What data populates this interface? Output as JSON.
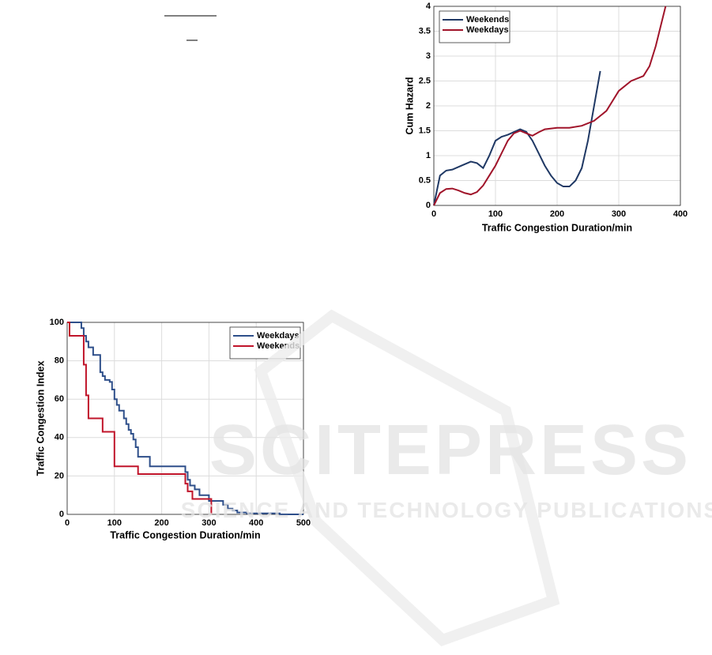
{
  "watermark": {
    "title": "SCITEPRESS",
    "subtitle": "SCIENCE AND TECHNOLOGY PUBLICATIONS"
  },
  "chart_data": [
    {
      "type": "line",
      "xlabel": "Traffic Congestion Duration/min",
      "ylabel": "Cum Hazard",
      "xlim": [
        0,
        400
      ],
      "xticks": [
        0,
        100,
        200,
        300,
        400
      ],
      "ylim": [
        0,
        4
      ],
      "yticks": [
        0,
        0.5,
        1,
        1.5,
        2,
        2.5,
        3,
        3.5,
        4
      ],
      "grid": true,
      "legend": "upper left",
      "series": [
        {
          "name": "Weekends",
          "color": "#1f3864",
          "x": [
            0,
            10,
            20,
            30,
            45,
            60,
            70,
            80,
            90,
            100,
            110,
            120,
            140,
            150,
            160,
            170,
            180,
            190,
            200,
            210,
            220,
            230,
            240,
            250,
            260,
            270
          ],
          "values": [
            0,
            0.6,
            0.7,
            0.72,
            0.8,
            0.88,
            0.85,
            0.75,
            1.0,
            1.3,
            1.38,
            1.42,
            1.53,
            1.48,
            1.3,
            1.05,
            0.8,
            0.6,
            0.45,
            0.38,
            0.38,
            0.5,
            0.75,
            1.3,
            2.0,
            2.7
          ]
        },
        {
          "name": "Weekdays",
          "color": "#a0142a",
          "x": [
            0,
            10,
            20,
            30,
            40,
            50,
            60,
            70,
            80,
            90,
            100,
            110,
            120,
            130,
            140,
            150,
            160,
            170,
            180,
            200,
            220,
            240,
            260,
            280,
            300,
            320,
            340,
            350,
            360,
            370,
            376
          ],
          "values": [
            0,
            0.25,
            0.33,
            0.34,
            0.3,
            0.25,
            0.22,
            0.27,
            0.4,
            0.6,
            0.8,
            1.05,
            1.3,
            1.45,
            1.5,
            1.45,
            1.4,
            1.47,
            1.53,
            1.56,
            1.56,
            1.6,
            1.7,
            1.9,
            2.3,
            2.5,
            2.6,
            2.8,
            3.2,
            3.7,
            4.0
          ]
        }
      ]
    },
    {
      "type": "step",
      "xlabel": "Traffic Congestion Duration/min",
      "ylabel": "Traffic Congestion Index",
      "xlim": [
        0,
        500
      ],
      "xticks": [
        0,
        100,
        200,
        300,
        400,
        500
      ],
      "ylim": [
        0,
        100
      ],
      "yticks": [
        0,
        20,
        40,
        60,
        80,
        100
      ],
      "grid": true,
      "legend": "upper right",
      "series": [
        {
          "name": "Weekdays",
          "color": "#2e4f8a",
          "x": [
            0,
            30,
            35,
            40,
            45,
            55,
            70,
            75,
            80,
            90,
            95,
            100,
            105,
            110,
            120,
            125,
            130,
            135,
            140,
            145,
            150,
            175,
            250,
            255,
            260,
            270,
            280,
            300,
            330,
            340,
            350,
            360,
            380,
            450,
            500
          ],
          "values": [
            100,
            97,
            93,
            90,
            87,
            83,
            74,
            72,
            70,
            69,
            65,
            60,
            57,
            54,
            50,
            47,
            44,
            42,
            39,
            35,
            30,
            25,
            22,
            18,
            15,
            13,
            10,
            7,
            5,
            3,
            2,
            1,
            0.5,
            0,
            0
          ]
        },
        {
          "name": "Weekends",
          "color": "#c0142a",
          "x": [
            0,
            5,
            35,
            40,
            45,
            50,
            75,
            100,
            150,
            250,
            255,
            265,
            280,
            305
          ],
          "values": [
            100,
            93,
            78,
            62,
            50,
            50,
            43,
            25,
            21,
            16,
            12,
            8,
            8,
            0
          ]
        }
      ]
    }
  ]
}
